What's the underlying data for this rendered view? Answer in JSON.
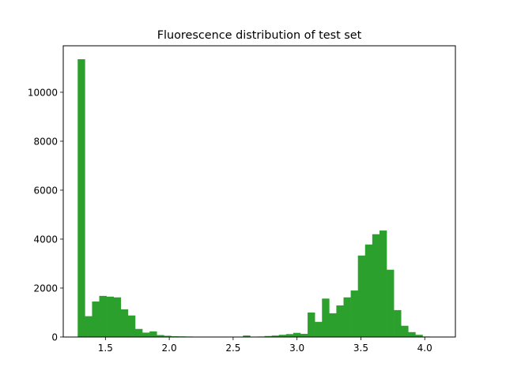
{
  "chart_data": {
    "type": "bar",
    "title": "Fluorescence distribution of test set",
    "xlabel": "",
    "ylabel": "",
    "xlim": [
      1.17,
      4.24
    ],
    "ylim": [
      0,
      11900
    ],
    "xticks": [
      1.5,
      2.0,
      2.5,
      3.0,
      3.5,
      4.0
    ],
    "xtick_labels": [
      "1.5",
      "2.0",
      "2.5",
      "3.0",
      "3.5",
      "4.0"
    ],
    "yticks": [
      0,
      2000,
      4000,
      6000,
      8000,
      10000
    ],
    "ytick_labels": [
      "0",
      "2000",
      "4000",
      "6000",
      "8000",
      "10000"
    ],
    "bin_width": 0.05625,
    "bin_start": 1.283,
    "values": [
      11350,
      850,
      1450,
      1680,
      1650,
      1620,
      1130,
      880,
      330,
      180,
      230,
      80,
      50,
      30,
      25,
      20,
      10,
      5,
      3,
      2,
      0,
      0,
      0,
      60,
      0,
      20,
      40,
      60,
      90,
      120,
      170,
      130,
      1000,
      620,
      1570,
      970,
      1290,
      1620,
      1900,
      3330,
      3780,
      4200,
      4350,
      2750,
      1100,
      460,
      200,
      90,
      20
    ],
    "color": "#2ca02c",
    "grid": false,
    "legend": "none"
  }
}
